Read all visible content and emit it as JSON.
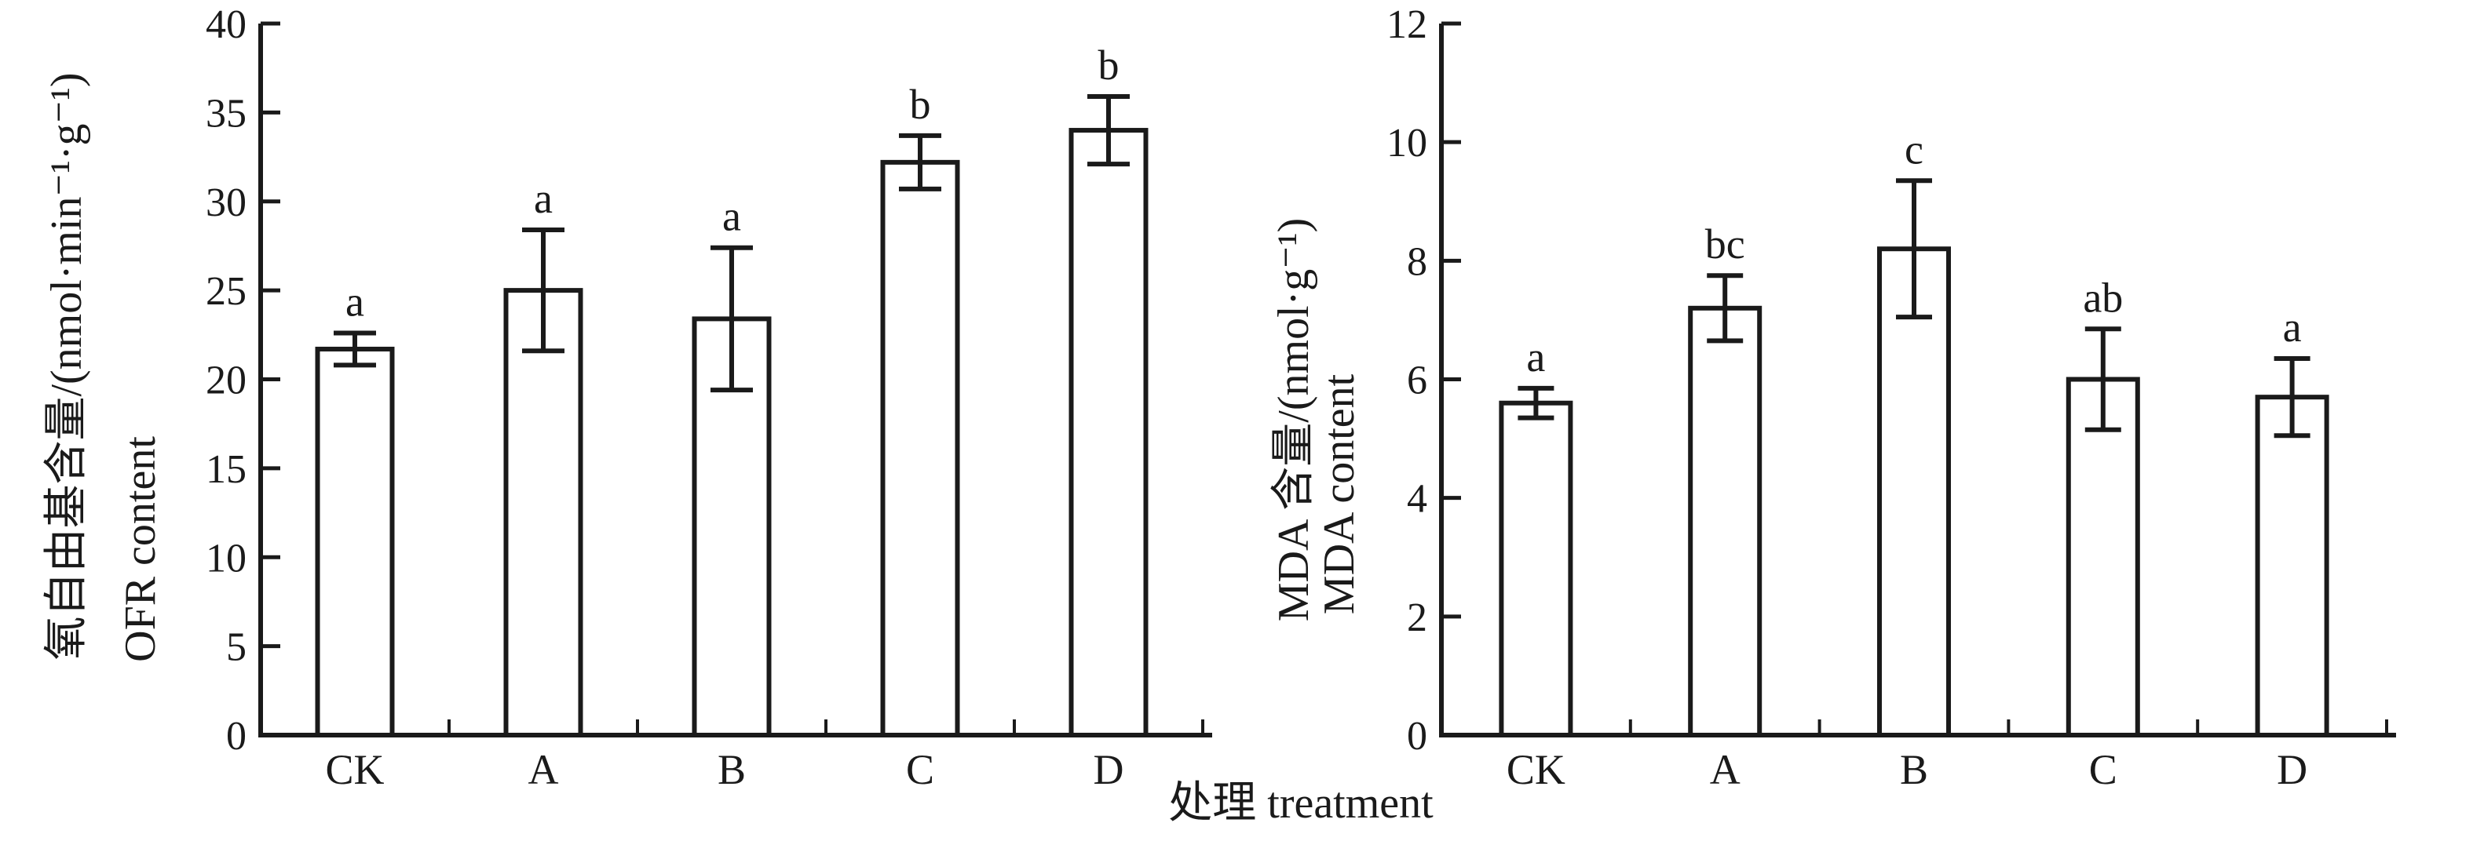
{
  "figure": {
    "xlabel": "处理 treatment",
    "colors": {
      "ink": "#1a1a1a",
      "background": "#ffffff"
    }
  },
  "chart_data": [
    {
      "type": "bar",
      "panel": "OFR",
      "title": "",
      "ylabel_zh": "氧自由基含量/(nmol·min⁻¹·g⁻¹)",
      "ylabel_en": "OFR content",
      "xlabel": "处理 treatment",
      "categories": [
        "CK",
        "A",
        "B",
        "C",
        "D"
      ],
      "values": [
        21.7,
        25.0,
        23.4,
        32.2,
        34.0
      ],
      "errors": [
        0.9,
        3.4,
        4.0,
        1.5,
        1.9
      ],
      "sig_letters": [
        "a",
        "a",
        "a",
        "b",
        "b"
      ],
      "ylim": [
        0,
        40
      ],
      "yticks": [
        0,
        5,
        10,
        15,
        20,
        25,
        30,
        35,
        40
      ],
      "grid": false,
      "legend": null,
      "bar_fill": "#ffffff",
      "bar_stroke": "#1a1a1a"
    },
    {
      "type": "bar",
      "panel": "MDA",
      "title": "",
      "ylabel_zh": "MDA 含量/(nmol·g⁻¹)",
      "ylabel_en": "MDA content",
      "xlabel": "处理 treatment",
      "categories": [
        "CK",
        "A",
        "B",
        "C",
        "D"
      ],
      "values": [
        5.6,
        7.2,
        8.2,
        6.0,
        5.7
      ],
      "errors": [
        0.25,
        0.55,
        1.15,
        0.85,
        0.65
      ],
      "sig_letters": [
        "a",
        "bc",
        "c",
        "ab",
        "a"
      ],
      "ylim": [
        0,
        12
      ],
      "yticks": [
        0,
        2,
        4,
        6,
        8,
        10,
        12
      ],
      "grid": false,
      "legend": null,
      "bar_fill": "#ffffff",
      "bar_stroke": "#1a1a1a"
    }
  ]
}
